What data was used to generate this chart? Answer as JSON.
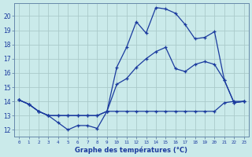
{
  "xlabel": "Graphe des températures (°C)",
  "bg_color": "#caeaea",
  "line_color": "#1a3a9e",
  "grid_color": "#aacaca",
  "axis_color": "#6688aa",
  "x_ticks": [
    0,
    1,
    2,
    3,
    4,
    5,
    6,
    7,
    8,
    9,
    10,
    11,
    12,
    13,
    14,
    15,
    16,
    17,
    18,
    19,
    20,
    21,
    22,
    23
  ],
  "y_ticks": [
    12,
    13,
    14,
    15,
    16,
    17,
    18,
    19,
    20
  ],
  "xlim": [
    -0.5,
    23.5
  ],
  "ylim": [
    11.5,
    20.9
  ],
  "series1_x": [
    0,
    1,
    2,
    3,
    4,
    5,
    6,
    7,
    8,
    9,
    10,
    11,
    12,
    13,
    14,
    15,
    16,
    17,
    18,
    19,
    20,
    21,
    22,
    23
  ],
  "series1_y": [
    14.1,
    13.8,
    13.3,
    13.0,
    12.5,
    12.0,
    12.3,
    12.3,
    12.1,
    13.3,
    13.3,
    13.3,
    13.3,
    13.3,
    13.3,
    13.3,
    13.3,
    13.3,
    13.3,
    13.3,
    13.3,
    13.9,
    14.0,
    14.0
  ],
  "series2_x": [
    0,
    1,
    2,
    3,
    4,
    5,
    6,
    7,
    8,
    9,
    10,
    11,
    12,
    13,
    14,
    15,
    16,
    17,
    18,
    19,
    20,
    21,
    22,
    23
  ],
  "series2_y": [
    14.1,
    13.8,
    13.3,
    13.0,
    13.0,
    13.0,
    13.0,
    13.0,
    13.0,
    13.3,
    15.2,
    15.6,
    16.4,
    17.0,
    17.5,
    17.8,
    16.3,
    16.1,
    16.6,
    16.8,
    16.6,
    15.5,
    13.9,
    14.0
  ],
  "series3_x": [
    0,
    1,
    2,
    3,
    4,
    5,
    6,
    7,
    8,
    9,
    10,
    11,
    12,
    13,
    14,
    15,
    16,
    17,
    18,
    19,
    20,
    21,
    22,
    23
  ],
  "series3_y": [
    14.1,
    13.8,
    13.3,
    13.0,
    13.0,
    13.0,
    13.0,
    13.0,
    13.0,
    13.3,
    16.4,
    17.8,
    19.6,
    18.8,
    20.6,
    20.5,
    20.2,
    19.4,
    18.4,
    18.5,
    18.9,
    15.5,
    13.9,
    14.0
  ]
}
